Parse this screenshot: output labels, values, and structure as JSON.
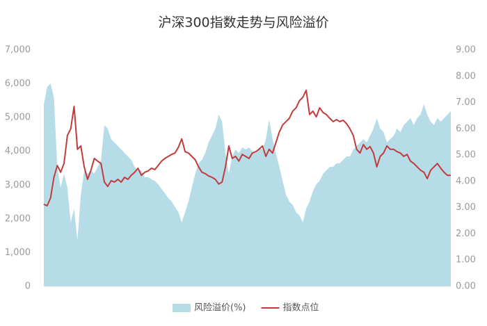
{
  "chart_data": {
    "type": "line",
    "title": "沪深300指数走势与风险溢价",
    "series": [
      {
        "name": "风险溢价(%)",
        "type": "area",
        "axis": "y2",
        "color": "#b6dde7",
        "values": [
          6.94,
          7.6,
          7.73,
          7.2,
          4.55,
          3.76,
          4.29,
          3.76,
          2.44,
          2.96,
          1.77,
          3.49,
          4.42,
          4.29,
          4.42,
          4.29,
          4.55,
          4.82,
          6.14,
          6.01,
          5.61,
          5.48,
          5.35,
          5.21,
          5.08,
          4.95,
          4.82,
          4.55,
          4.42,
          4.42,
          4.16,
          4.16,
          4.08,
          4.02,
          3.89,
          3.71,
          3.55,
          3.36,
          3.23,
          3.02,
          2.83,
          2.44,
          2.83,
          3.23,
          3.76,
          4.29,
          4.69,
          4.82,
          5.08,
          5.48,
          5.74,
          6.01,
          6.54,
          6.27,
          5.08,
          4.29,
          4.95,
          5.21,
          5.08,
          5.29,
          5.21,
          5.29,
          5.14,
          5.08,
          5.29,
          5.21,
          5.61,
          6.35,
          5.61,
          5.08,
          4.55,
          4.02,
          3.49,
          3.23,
          3.1,
          2.83,
          2.7,
          2.44,
          2.96,
          3.23,
          3.63,
          3.89,
          4.02,
          4.29,
          4.42,
          4.55,
          4.55,
          4.69,
          4.69,
          4.82,
          4.95,
          4.95,
          5.21,
          5.35,
          5.48,
          5.61,
          5.48,
          5.74,
          6.01,
          6.41,
          6.01,
          5.88,
          5.48,
          5.61,
          5.74,
          6.01,
          5.88,
          6.14,
          6.27,
          6.41,
          6.14,
          6.41,
          6.54,
          6.94,
          6.54,
          6.27,
          6.14,
          6.41,
          6.27,
          6.41,
          6.54,
          6.67
        ]
      },
      {
        "name": "指数点位",
        "type": "line",
        "axis": "y",
        "color": "#c23a3c",
        "values": [
          2430,
          2390,
          2620,
          3230,
          3580,
          3380,
          3640,
          4470,
          4670,
          5330,
          4060,
          4160,
          3540,
          3170,
          3440,
          3790,
          3710,
          3640,
          3090,
          2960,
          3130,
          3090,
          3170,
          3090,
          3230,
          3170,
          3290,
          3380,
          3500,
          3290,
          3380,
          3420,
          3500,
          3460,
          3580,
          3710,
          3790,
          3850,
          3910,
          3950,
          4120,
          4370,
          3990,
          3950,
          3850,
          3750,
          3540,
          3380,
          3340,
          3270,
          3230,
          3170,
          3030,
          3090,
          3540,
          4160,
          3790,
          3850,
          3710,
          3910,
          3850,
          3790,
          3950,
          3990,
          4060,
          4160,
          3850,
          4060,
          3950,
          4260,
          4570,
          4780,
          4880,
          4980,
          5190,
          5290,
          5500,
          5600,
          5810,
          5090,
          5190,
          5020,
          5290,
          5150,
          5090,
          4980,
          4880,
          4940,
          4880,
          4920,
          4820,
          4670,
          4470,
          4060,
          3950,
          4200,
          4060,
          4140,
          3950,
          3540,
          3850,
          3950,
          4160,
          4060,
          4060,
          3990,
          3950,
          3850,
          3910,
          3710,
          3640,
          3540,
          3440,
          3380,
          3190,
          3440,
          3540,
          3640,
          3500,
          3380,
          3290,
          3290
        ]
      }
    ],
    "ylim": [
      0,
      7000
    ],
    "yticks": [
      0,
      {
        "value": 1000,
        "label": "1,000"
      },
      {
        "value": 2000,
        "label": "2,000"
      },
      {
        "value": 3000,
        "label": "3,000"
      },
      {
        "value": 4000,
        "label": "4,000"
      },
      {
        "value": 5000,
        "label": "5,000"
      },
      {
        "value": 6000,
        "label": "6,000"
      },
      {
        "value": 7000,
        "label": "7,000"
      }
    ],
    "y2lim": [
      0,
      9
    ],
    "y2ticks": [
      {
        "value": 0,
        "label": "0.00"
      },
      {
        "value": 1,
        "label": "1.00"
      },
      {
        "value": 2,
        "label": "2.00"
      },
      {
        "value": 3,
        "label": "3.00"
      },
      {
        "value": 4,
        "label": "4.00"
      },
      {
        "value": 5,
        "label": "5.00"
      },
      {
        "value": 6,
        "label": "6.00"
      },
      {
        "value": 7,
        "label": "7.00"
      },
      {
        "value": 8,
        "label": "8.00"
      },
      {
        "value": 9,
        "label": "9.00"
      }
    ],
    "grid": false,
    "legend": "bottom"
  }
}
